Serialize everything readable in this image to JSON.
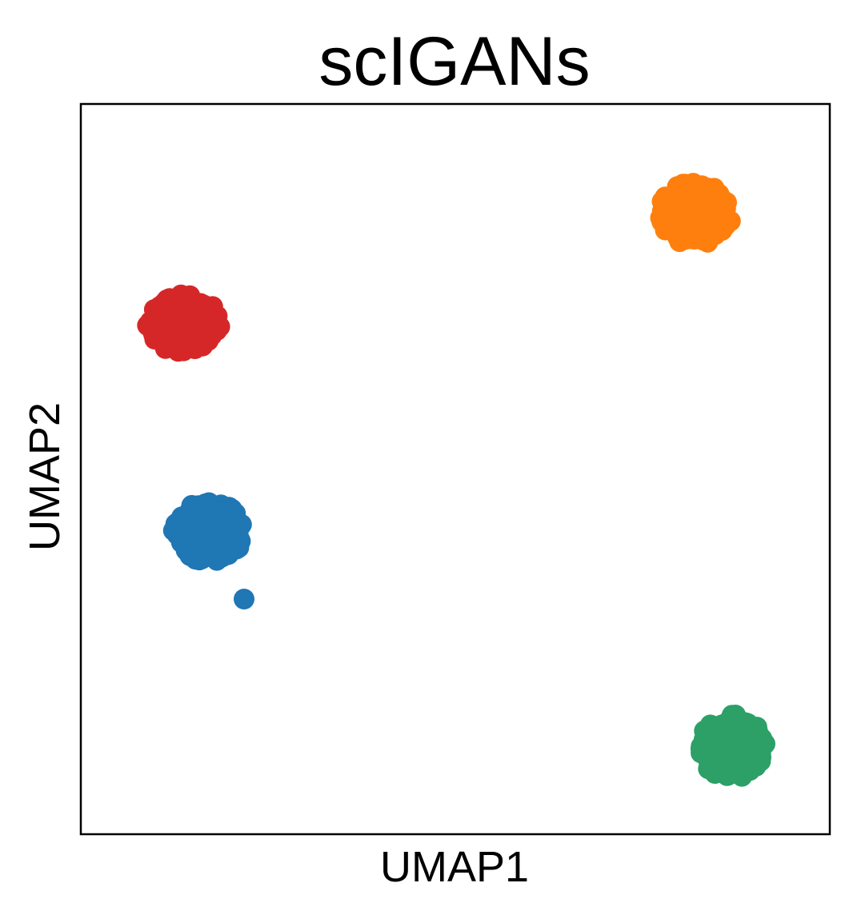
{
  "chart_data": {
    "type": "scatter",
    "title": "scIGANs",
    "xlabel": "UMAP1",
    "ylabel": "UMAP2",
    "xlim": [
      0,
      10
    ],
    "ylim": [
      0,
      10
    ],
    "grid": false,
    "ticks": false,
    "legend": "none",
    "series": [
      {
        "color": "#d62728",
        "center": [
          1.37,
          7.0
        ],
        "spread": [
          0.45,
          0.38
        ],
        "n": 320,
        "seed": 11
      },
      {
        "color": "#ff7f0e",
        "center": [
          8.2,
          8.5
        ],
        "spread": [
          0.45,
          0.42
        ],
        "n": 320,
        "seed": 23
      },
      {
        "color": "#1f77b4",
        "center": [
          1.7,
          4.15
        ],
        "spread": [
          0.45,
          0.4
        ],
        "n": 320,
        "seed": 37,
        "outliers": [
          [
            2.18,
            3.22
          ]
        ]
      },
      {
        "color": "#2ca067",
        "center": [
          8.7,
          1.2
        ],
        "spread": [
          0.42,
          0.4
        ],
        "n": 320,
        "seed": 41
      }
    ]
  }
}
